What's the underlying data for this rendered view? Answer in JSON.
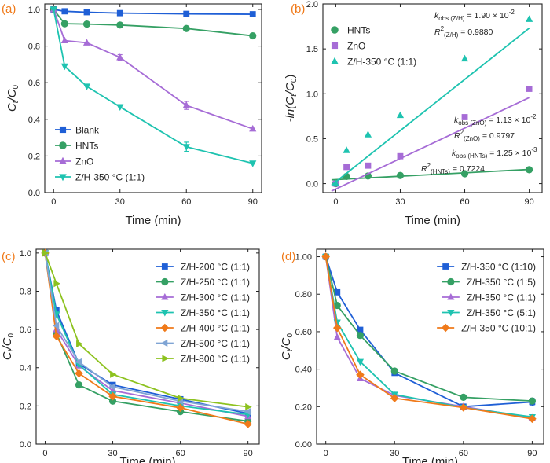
{
  "figure": {
    "panel_count": 4
  },
  "chart_data": [
    {
      "id": "a",
      "type": "line",
      "panel_label": "(a)",
      "xlabel": "Time (min)",
      "ylabel_main": "C",
      "ylabel_sub1": "t",
      "ylabel_mid": "/C",
      "ylabel_sub2": "0",
      "xlim": [
        -4,
        94
      ],
      "ylim": [
        0,
        1.03
      ],
      "xticks": [
        0,
        30,
        60,
        90
      ],
      "yticks": [
        0.0,
        0.2,
        0.4,
        0.6,
        0.8,
        1.0
      ],
      "ytick_decimals": 1,
      "legend_position": "bottom-left",
      "series": [
        {
          "name": "Blank",
          "color": "#1f5fd6",
          "marker": "square",
          "x": [
            0,
            5,
            15,
            30,
            60,
            90
          ],
          "y": [
            1.0,
            0.99,
            0.985,
            0.98,
            0.976,
            0.974
          ]
        },
        {
          "name": "HNTs",
          "color": "#35a064",
          "marker": "circle",
          "x": [
            0,
            5,
            15,
            30,
            60,
            90
          ],
          "y": [
            1.0,
            0.922,
            0.92,
            0.915,
            0.896,
            0.856
          ]
        },
        {
          "name": "ZnO",
          "color": "#a66cd6",
          "marker": "triangle-up",
          "x": [
            0,
            5,
            15,
            30,
            60,
            90
          ],
          "y": [
            1.0,
            0.83,
            0.818,
            0.738,
            0.476,
            0.348
          ],
          "err": [
            0,
            0,
            0,
            0.015,
            0.022,
            0
          ]
        },
        {
          "name": "Z/H-350 °C (1:1)",
          "color": "#1ec3b0",
          "marker": "triangle-down",
          "x": [
            0,
            5,
            15,
            30,
            60,
            90
          ],
          "y": [
            1.0,
            0.69,
            0.58,
            0.468,
            0.25,
            0.16
          ],
          "err": [
            0,
            0,
            0,
            0,
            0.025,
            0
          ]
        }
      ]
    },
    {
      "id": "b",
      "type": "scatter",
      "panel_label": "(b)",
      "xlabel": "Time (min)",
      "ylabel_main": "-ln(C",
      "ylabel_sub1": "t",
      "ylabel_mid": "/C",
      "ylabel_sub2": "0",
      "ylabel_end": ")",
      "xlim": [
        -6,
        96
      ],
      "ylim": [
        -0.1,
        2.0
      ],
      "xticks": [
        0,
        30,
        60,
        90
      ],
      "yticks": [
        0.0,
        0.5,
        1.0,
        1.5,
        2.0
      ],
      "ytick_decimals": 1,
      "legend_position": "top-left",
      "series": [
        {
          "name": "HNTs",
          "color": "#35a064",
          "marker": "circle",
          "x": [
            0,
            5,
            15,
            30,
            60,
            90
          ],
          "y": [
            0.0,
            0.08,
            0.085,
            0.09,
            0.11,
            0.155
          ],
          "fit": [
            0.045,
            0.00125
          ]
        },
        {
          "name": "ZnO",
          "color": "#a66cd6",
          "marker": "square",
          "x": [
            0,
            5,
            15,
            30,
            60,
            90
          ],
          "y": [
            0.0,
            0.185,
            0.2,
            0.305,
            0.74,
            1.055
          ],
          "fit": [
            -0.06,
            0.0113
          ]
        },
        {
          "name": "Z/H-350 °C (1:1)",
          "color": "#1ec3b0",
          "marker": "triangle-up",
          "x": [
            0,
            5,
            15,
            30,
            60,
            90
          ],
          "y": [
            0.0,
            0.37,
            0.545,
            0.76,
            1.39,
            1.83
          ],
          "fit": [
            0.02,
            0.019
          ]
        }
      ],
      "annotations": [
        {
          "text_main": "k",
          "text_sub": "obs (Z/H)",
          "text_rest": " = 1.90 × 10",
          "text_sup": "-2"
        },
        {
          "text_main": "R",
          "text_sup": "2",
          "text_sub": "(Z/H)",
          "text_rest": " = 0.9880"
        },
        {
          "text_main": "k",
          "text_sub": "obs (ZnO)",
          "text_rest": " = 1.13 × 10",
          "text_sup": "-2"
        },
        {
          "text_main": "R",
          "text_sup": "2",
          "text_sub": "(ZnO)",
          "text_rest": " = 0.9797"
        },
        {
          "text_main": "k",
          "text_sub": "obs (HNTs)",
          "text_rest": " = 1.25 × 10",
          "text_sup": "-3"
        },
        {
          "text_main": "R",
          "text_sup": "2",
          "text_sub": "(HNTs)",
          "text_rest": " = 0.7224"
        }
      ]
    },
    {
      "id": "c",
      "type": "line",
      "panel_label": "(c)",
      "xlabel": "Time (min)",
      "ylabel_main": "C",
      "ylabel_sub1": "t",
      "ylabel_mid": "/C",
      "ylabel_sub2": "0",
      "xlim": [
        -4,
        95
      ],
      "ylim": [
        0,
        1.02
      ],
      "xticks": [
        0,
        30,
        60,
        90
      ],
      "yticks": [
        0.0,
        0.2,
        0.4,
        0.6,
        0.8,
        1.0
      ],
      "ytick_decimals": 1,
      "legend_position": "top-right",
      "series": [
        {
          "name": "Z/H-200 °C (1:1)",
          "color": "#1f5fd6",
          "marker": "square",
          "x": [
            0,
            5,
            15,
            30,
            60,
            90
          ],
          "y": [
            1.0,
            0.7,
            0.42,
            0.31,
            0.235,
            0.16
          ]
        },
        {
          "name": "Z/H-250 °C (1:1)",
          "color": "#35a064",
          "marker": "circle",
          "x": [
            0,
            5,
            15,
            30,
            60,
            90
          ],
          "y": [
            1.0,
            0.58,
            0.31,
            0.225,
            0.17,
            0.12
          ]
        },
        {
          "name": "Z/H-300 °C (1:1)",
          "color": "#a66cd6",
          "marker": "triangle-up",
          "x": [
            0,
            5,
            15,
            30,
            60,
            90
          ],
          "y": [
            1.0,
            0.6,
            0.41,
            0.28,
            0.215,
            0.145
          ]
        },
        {
          "name": "Z/H-350 °C (1:1)",
          "color": "#1ec3b0",
          "marker": "triangle-down",
          "x": [
            0,
            5,
            15,
            30,
            60,
            90
          ],
          "y": [
            1.0,
            0.68,
            0.415,
            0.26,
            0.2,
            0.155
          ]
        },
        {
          "name": "Z/H-400 °C (1:1)",
          "color": "#f07a1a",
          "marker": "diamond",
          "x": [
            0,
            5,
            15,
            30,
            60,
            90
          ],
          "y": [
            1.0,
            0.565,
            0.37,
            0.25,
            0.19,
            0.105
          ]
        },
        {
          "name": "Z/H-500 °C (1:1)",
          "color": "#7fa4d4",
          "marker": "triangle-left",
          "x": [
            0,
            5,
            15,
            30,
            60,
            90
          ],
          "y": [
            1.0,
            0.62,
            0.43,
            0.3,
            0.225,
            0.17
          ]
        },
        {
          "name": "Z/H-800 °C (1:1)",
          "color": "#8dc21f",
          "marker": "triangle-right",
          "x": [
            0,
            5,
            15,
            30,
            60,
            90
          ],
          "y": [
            1.0,
            0.84,
            0.525,
            0.365,
            0.24,
            0.195
          ]
        }
      ]
    },
    {
      "id": "d",
      "type": "line",
      "panel_label": "(d)",
      "xlabel": "Time (min)",
      "ylabel_main": "C",
      "ylabel_sub1": "t",
      "ylabel_mid": "/C",
      "ylabel_sub2": "0",
      "xlim": [
        -4,
        95
      ],
      "ylim": [
        0,
        1.04
      ],
      "xticks": [
        0,
        30,
        60,
        90
      ],
      "yticks": [
        0.0,
        0.2,
        0.4,
        0.6,
        0.8,
        1.0
      ],
      "ytick_decimals": 2,
      "legend_position": "top-right",
      "series": [
        {
          "name": "Z/H-350 °C (1:10)",
          "color": "#1f5fd6",
          "marker": "square",
          "x": [
            0,
            5,
            15,
            30,
            60,
            90
          ],
          "y": [
            1.0,
            0.81,
            0.61,
            0.38,
            0.2,
            0.225
          ],
          "err": [
            0,
            0,
            0,
            0,
            0,
            0.02
          ]
        },
        {
          "name": "Z/H-350 °C (1:5)",
          "color": "#35a064",
          "marker": "circle",
          "x": [
            0,
            5,
            15,
            30,
            60,
            90
          ],
          "y": [
            1.0,
            0.74,
            0.58,
            0.39,
            0.25,
            0.23
          ]
        },
        {
          "name": "Z/H-350 °C (1:1)",
          "color": "#a66cd6",
          "marker": "triangle-up",
          "x": [
            0,
            5,
            15,
            30,
            60,
            90
          ],
          "y": [
            1.0,
            0.57,
            0.35,
            0.26,
            0.2,
            0.14
          ]
        },
        {
          "name": "Z/H-350 °C (5:1)",
          "color": "#1ec3b0",
          "marker": "triangle-down",
          "x": [
            0,
            5,
            15,
            30,
            60,
            90
          ],
          "y": [
            1.0,
            0.65,
            0.44,
            0.265,
            0.195,
            0.145
          ]
        },
        {
          "name": "Z/H-350 °C (10:1)",
          "color": "#f07a1a",
          "marker": "diamond",
          "x": [
            0,
            5,
            15,
            30,
            60,
            90
          ],
          "y": [
            1.0,
            0.62,
            0.37,
            0.245,
            0.195,
            0.135
          ]
        }
      ]
    }
  ]
}
